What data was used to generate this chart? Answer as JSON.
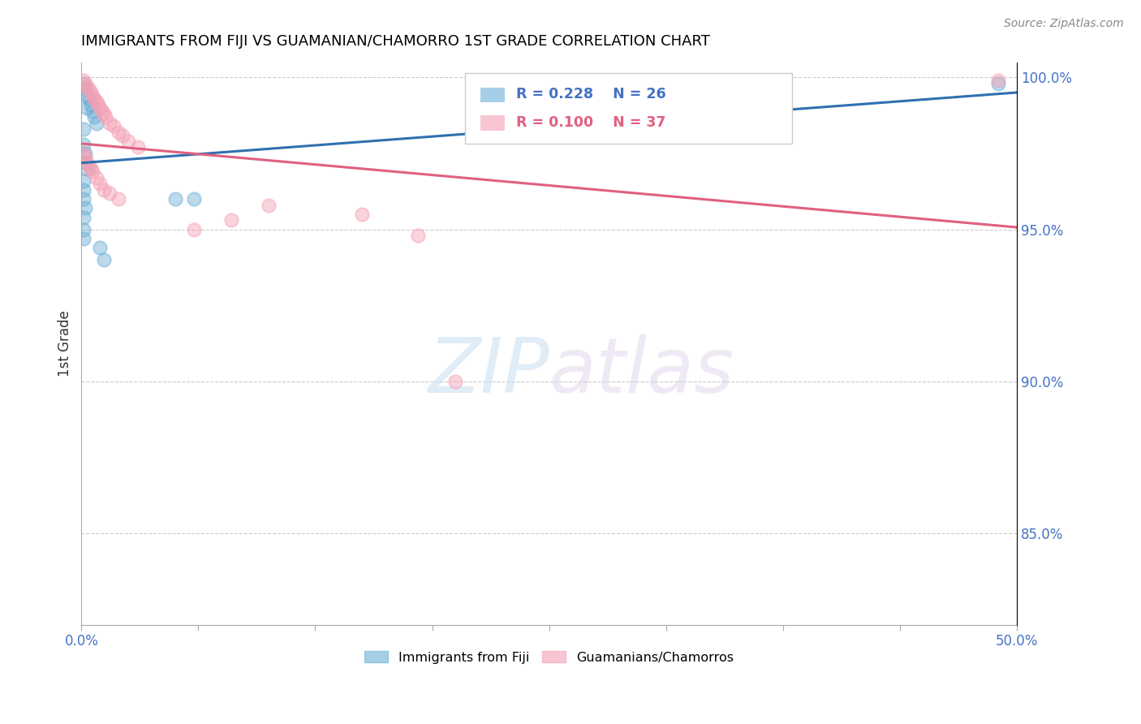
{
  "title": "IMMIGRANTS FROM FIJI VS GUAMANIAN/CHAMORRO 1ST GRADE CORRELATION CHART",
  "source": "Source: ZipAtlas.com",
  "ylabel": "1st Grade",
  "watermark_zip": "ZIP",
  "watermark_atlas": "atlas",
  "fiji_color": "#6baed6",
  "guam_color": "#f4a0b5",
  "fiji_line_color": "#3070b0",
  "guam_line_color": "#e06080",
  "xlim": [
    0.0,
    0.5
  ],
  "ylim": [
    0.82,
    1.005
  ],
  "yticks": [
    0.85,
    0.9,
    0.95,
    1.0
  ],
  "right_axis_labels": [
    "85.0%",
    "90.0%",
    "95.0%",
    "100.0%"
  ],
  "xtick_positions": [
    0.0,
    0.0625,
    0.125,
    0.1875,
    0.25,
    0.3125,
    0.375,
    0.4375,
    0.5
  ],
  "fiji_x": [
    0.001,
    0.002,
    0.003,
    0.003,
    0.004,
    0.005,
    0.006,
    0.007,
    0.008,
    0.001,
    0.001,
    0.002,
    0.002,
    0.003,
    0.001,
    0.001,
    0.001,
    0.002,
    0.001,
    0.001,
    0.001,
    0.01,
    0.012,
    0.05,
    0.06,
    0.49
  ],
  "fiji_y": [
    0.998,
    0.996,
    0.994,
    0.99,
    0.993,
    0.991,
    0.989,
    0.987,
    0.985,
    0.983,
    0.978,
    0.975,
    0.972,
    0.97,
    0.966,
    0.963,
    0.96,
    0.957,
    0.954,
    0.95,
    0.947,
    0.944,
    0.94,
    0.96,
    0.96,
    0.998
  ],
  "guam_x": [
    0.001,
    0.002,
    0.003,
    0.004,
    0.005,
    0.006,
    0.007,
    0.008,
    0.009,
    0.01,
    0.011,
    0.012,
    0.013,
    0.015,
    0.017,
    0.02,
    0.022,
    0.025,
    0.03,
    0.001,
    0.002,
    0.003,
    0.004,
    0.005,
    0.006,
    0.008,
    0.01,
    0.012,
    0.015,
    0.02,
    0.1,
    0.15,
    0.08,
    0.06,
    0.18,
    0.2,
    0.49
  ],
  "guam_y": [
    0.999,
    0.998,
    0.997,
    0.996,
    0.995,
    0.994,
    0.993,
    0.992,
    0.991,
    0.99,
    0.989,
    0.988,
    0.987,
    0.985,
    0.984,
    0.982,
    0.981,
    0.979,
    0.977,
    0.975,
    0.974,
    0.972,
    0.971,
    0.97,
    0.969,
    0.967,
    0.965,
    0.963,
    0.962,
    0.96,
    0.958,
    0.955,
    0.953,
    0.95,
    0.948,
    0.9,
    0.999
  ]
}
